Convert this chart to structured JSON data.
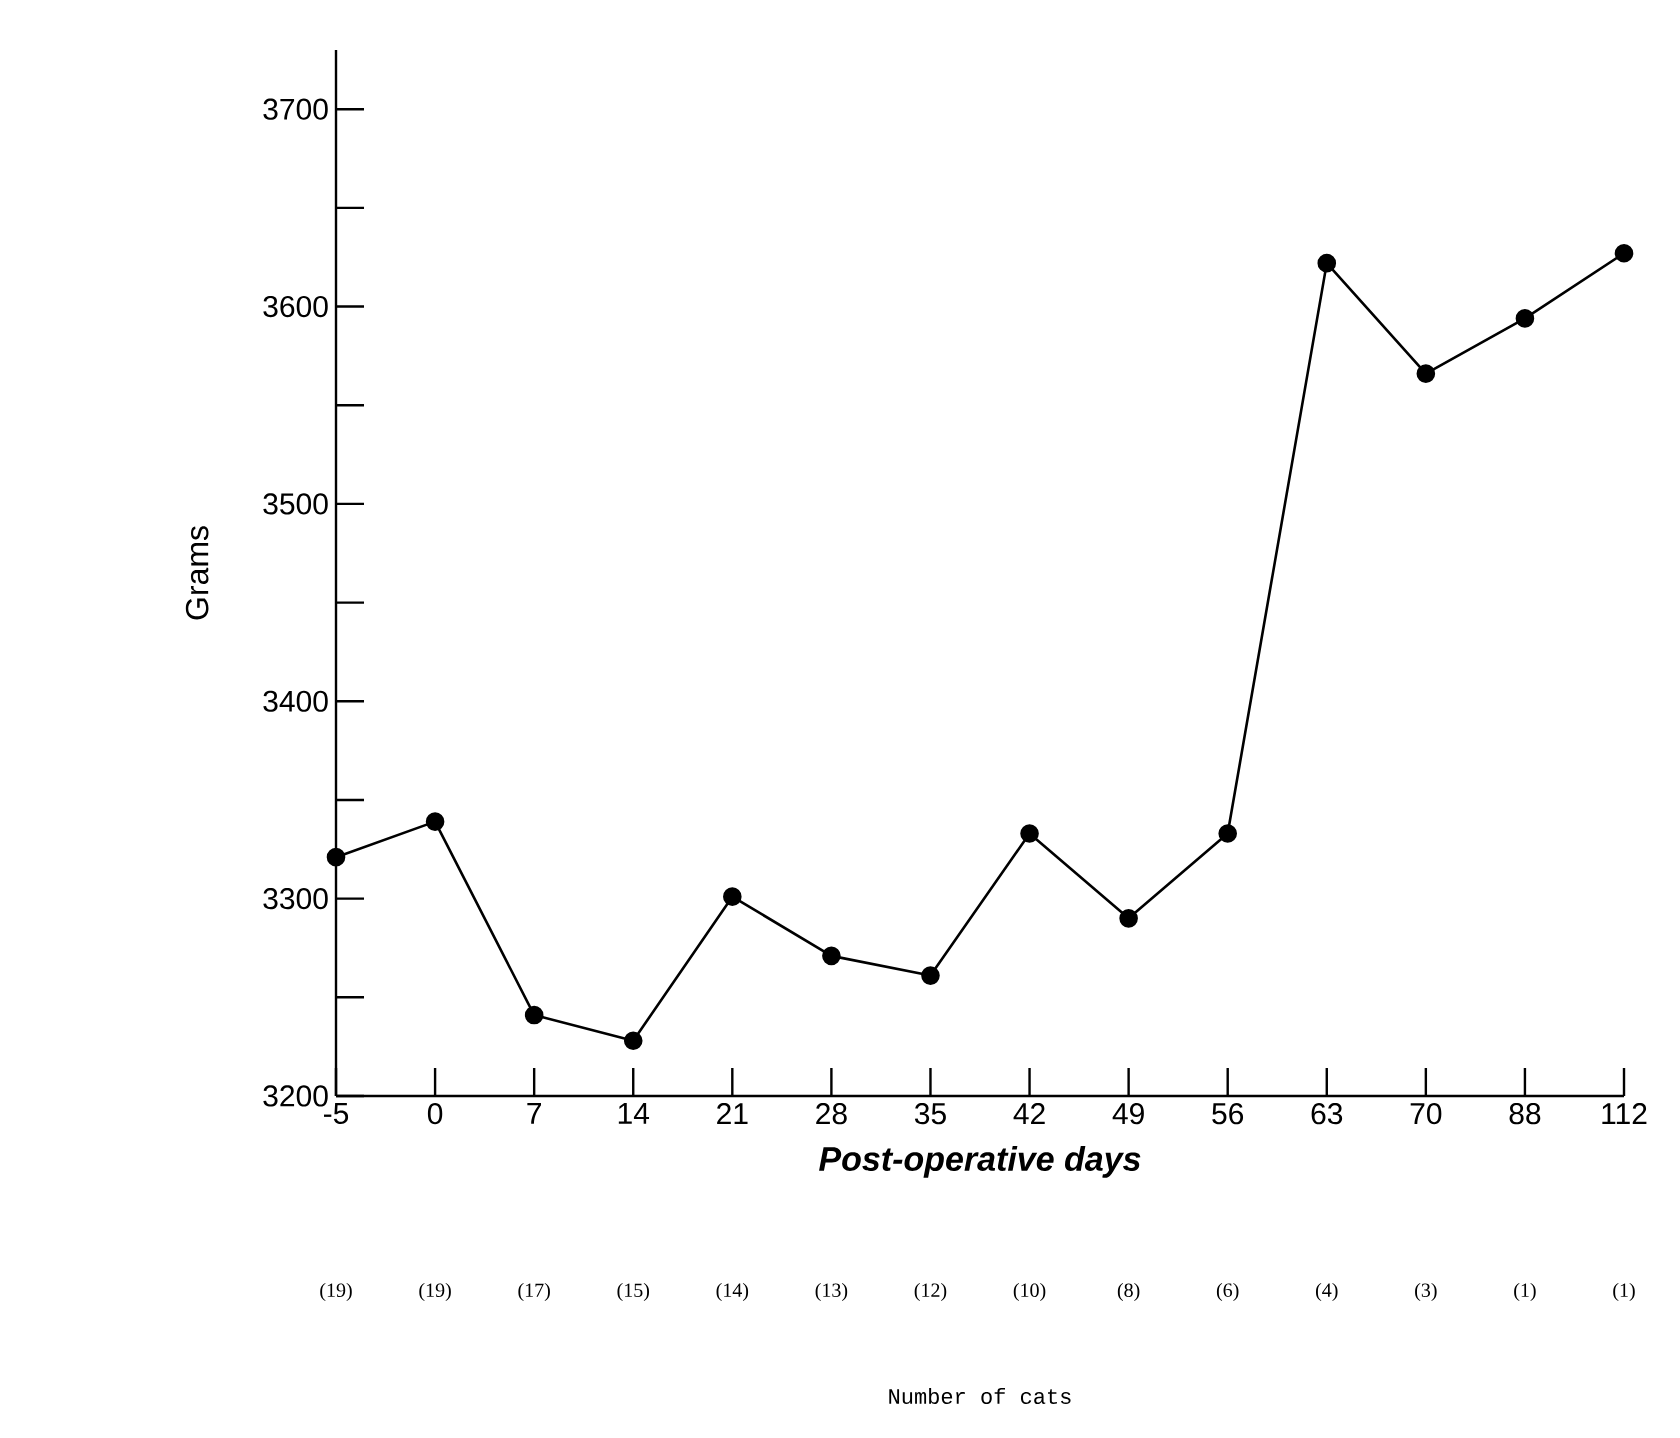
{
  "chart_data": {
    "type": "line",
    "xlabel": "Post-operative days",
    "ylabel": "Grams",
    "categories": [
      "-5",
      "0",
      "7",
      "14",
      "21",
      "28",
      "35",
      "42",
      "49",
      "56",
      "63",
      "70",
      "88",
      "112"
    ],
    "series": [
      {
        "color": "#000000",
        "values": [
          3321,
          3339,
          3241,
          3228,
          3301,
          3271,
          3261,
          3333,
          3290,
          3333,
          3622,
          3566,
          3594,
          3627
        ]
      }
    ],
    "ylim": [
      3200,
      3730
    ],
    "yticks": [
      3200,
      {
        "value": 3250,
        "label": null
      },
      3300,
      {
        "value": 3350,
        "label": null
      },
      3400,
      {
        "value": 3450,
        "label": null
      },
      3500,
      {
        "value": 3550,
        "label": null
      },
      3600,
      {
        "value": 3650,
        "label": null
      },
      3700
    ],
    "marker": "circle",
    "line_style": "solid",
    "grid": false,
    "annotations": [
      "(19)",
      "(19)",
      "(17)",
      "(15)",
      "(14)",
      "(13)",
      "(12)",
      "(10)",
      "(8)",
      "(6)",
      "(4)",
      "(3)",
      "(1)",
      "(1)",
      "Number of cats"
    ]
  }
}
